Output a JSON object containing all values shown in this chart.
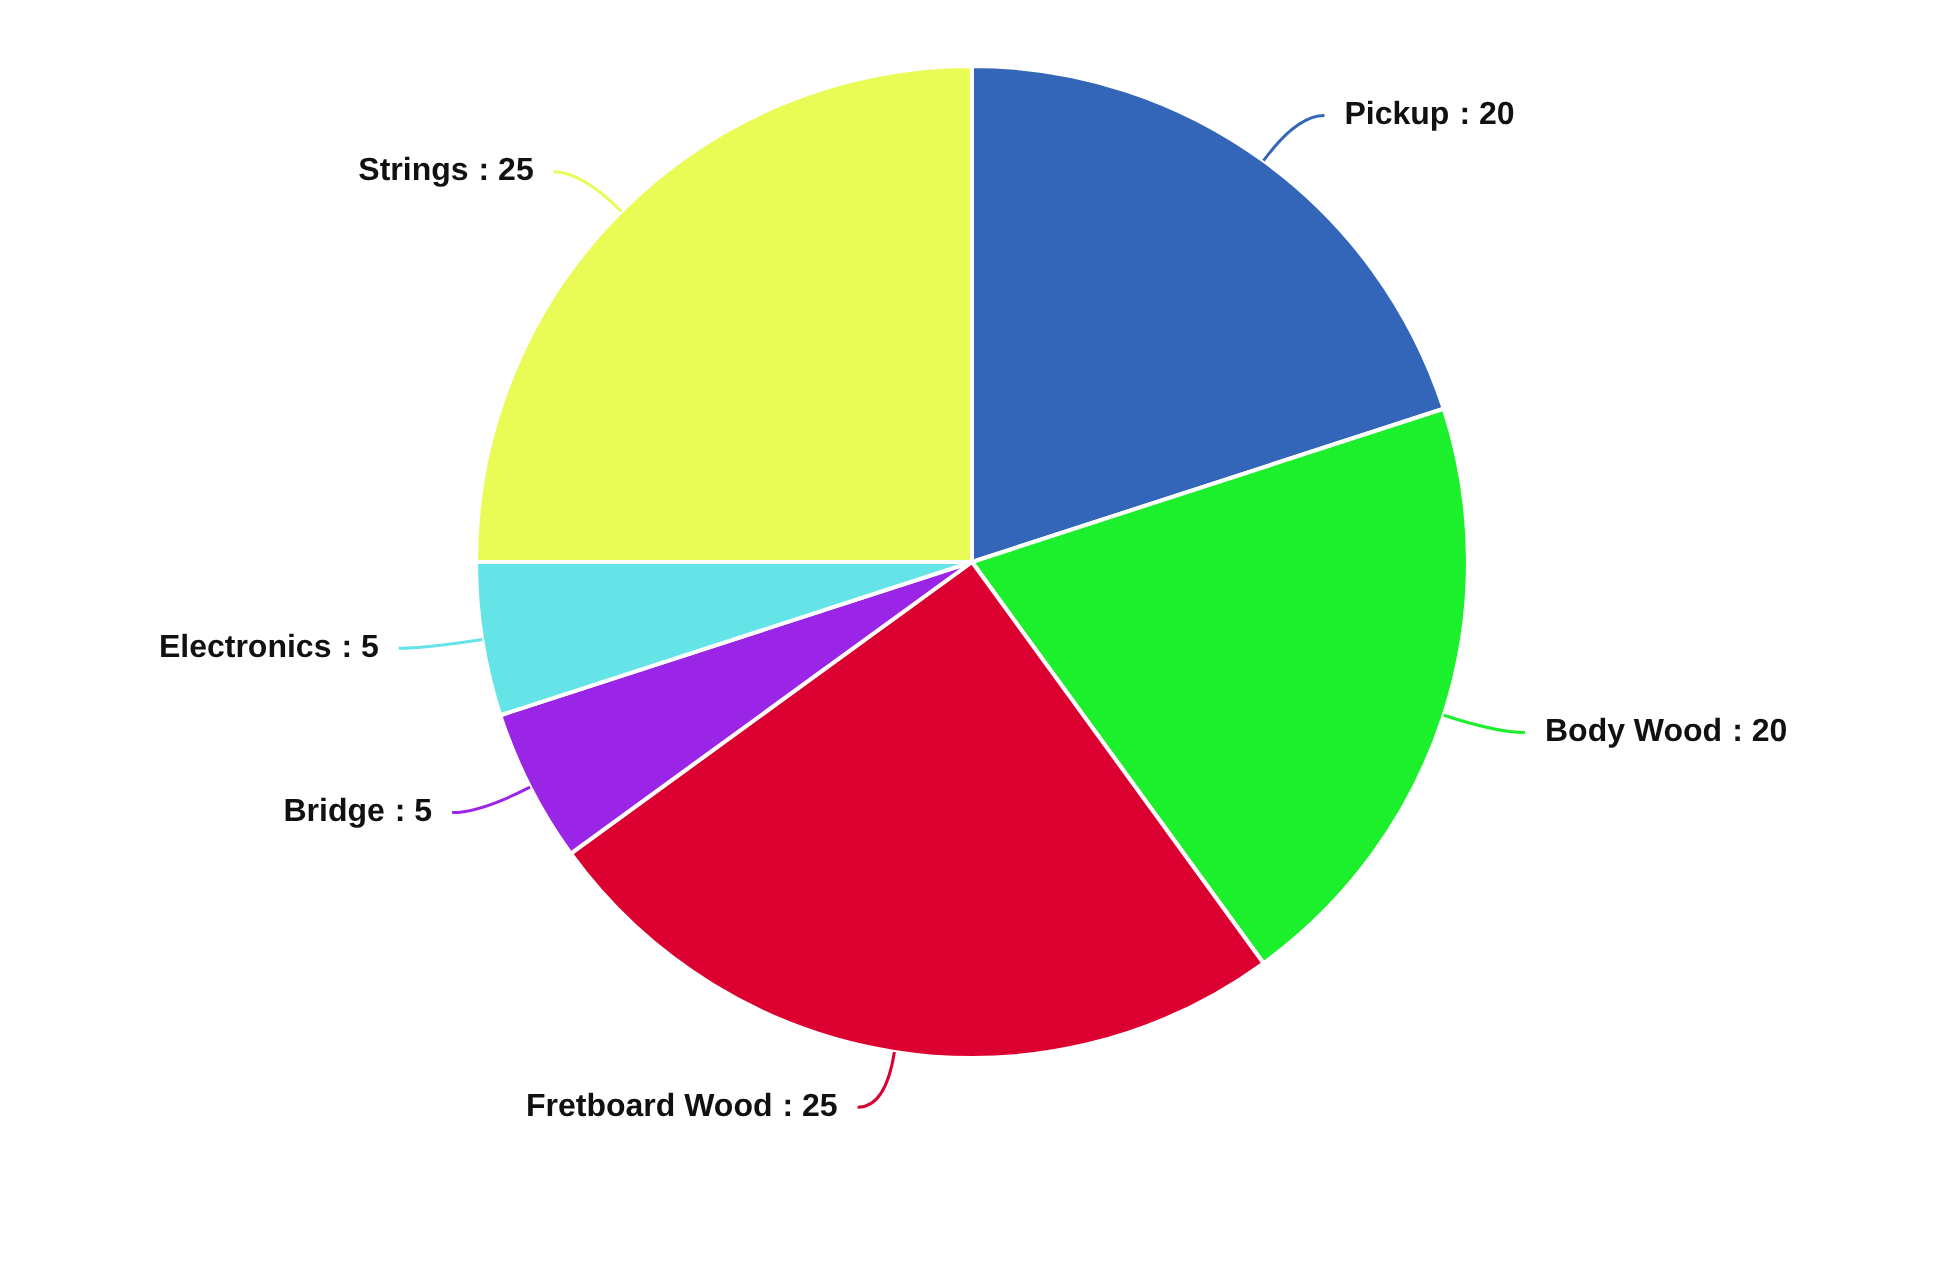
{
  "chart_data": {
    "type": "pie",
    "categories": [
      "Pickup",
      "Body Wood",
      "Fretboard Wood",
      "Bridge",
      "Electronics",
      "Strings"
    ],
    "values": [
      20,
      20,
      25,
      5,
      5,
      25
    ],
    "colors": [
      "#3366b8",
      "#1cef2b",
      "#dc0030",
      "#9b25e6",
      "#64e4e6",
      "#e8fc55"
    ],
    "value_labels": [
      ": 20",
      ": 20",
      ": 25",
      ": 5",
      ": 5",
      ": 25"
    ]
  }
}
